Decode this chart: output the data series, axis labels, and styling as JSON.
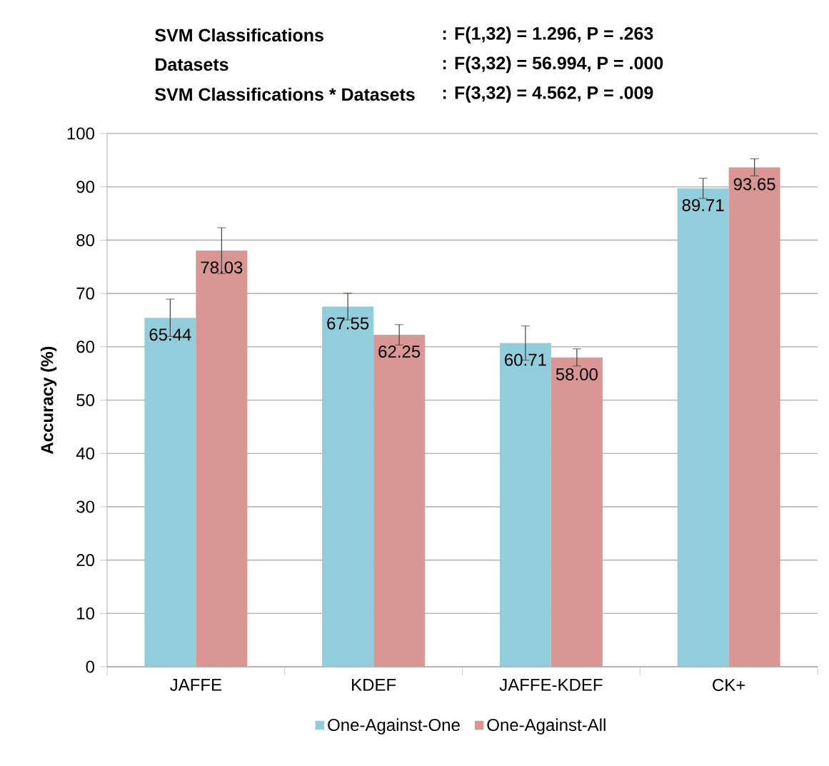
{
  "chart_data": {
    "type": "bar",
    "annotations": [
      "SVM Classifications",
      ": F(1,32) = 1.296,    P = .263",
      "Datasets",
      ": F(3,32) = 56.994,  P = .000",
      "SVM Classifications  * Datasets",
      ": F(3,32) = 4.562,     P = .009"
    ],
    "ylabel": "Accuracy (%)",
    "categories": [
      "JAFFE",
      "KDEF",
      "JAFFE-KDEF",
      "CK+"
    ],
    "series": [
      {
        "name": "One-Against-One",
        "color": "#92cddc",
        "values": [
          65.44,
          67.55,
          60.71,
          89.71
        ],
        "errors": [
          3.5,
          2.5,
          3.2,
          1.9
        ],
        "value_labels": [
          "65.44",
          "67.55",
          "60.71",
          "89.71"
        ]
      },
      {
        "name": "One-Against-All",
        "color": "#d99694",
        "values": [
          78.03,
          62.25,
          58.0,
          93.65
        ],
        "errors": [
          4.3,
          1.9,
          1.6,
          1.6
        ],
        "value_labels": [
          "78.03",
          "62.25",
          "58.00",
          "93.65"
        ]
      }
    ],
    "ylim": [
      0,
      100
    ],
    "yticks": [
      0,
      10,
      20,
      30,
      40,
      50,
      60,
      70,
      80,
      90,
      100
    ],
    "grid": "y",
    "legend": "bottom"
  }
}
